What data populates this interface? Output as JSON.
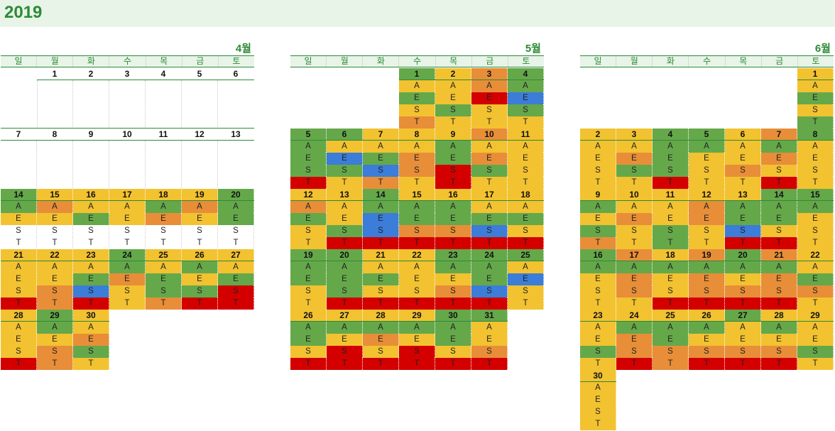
{
  "title": "2019",
  "weekdays": [
    "일",
    "월",
    "화",
    "수",
    "목",
    "금",
    "토"
  ],
  "shift_labels": [
    "A",
    "E",
    "S",
    "T"
  ],
  "colors": {
    "G": "#65a84a",
    "Y": "#f2c230",
    "O": "#e88e38",
    "R": "#d40000",
    "B": "#3b7dd8",
    "W": "#ffffff"
  },
  "months": [
    {
      "label": "4월",
      "weeks": [
        {
          "days": [
            null,
            1,
            2,
            3,
            4,
            5,
            6
          ],
          "dayColors": "WWWWWWW",
          "rows": null
        },
        {
          "days": [
            7,
            8,
            9,
            10,
            11,
            12,
            13
          ],
          "dayColors": "WWWWWWW",
          "rows": null
        },
        {
          "days": [
            14,
            15,
            16,
            17,
            18,
            19,
            20
          ],
          "dayColors": "GYYYYYG",
          "rows": [
            "GOYYGOG",
            "YYGYOYG",
            "WWWWWWW",
            "WWWWWWW"
          ]
        },
        {
          "days": [
            21,
            22,
            23,
            24,
            25,
            26,
            27
          ],
          "dayColors": "YYYGYYY",
          "rows": [
            "YYYGYGY",
            "YYGOGYG",
            "YOBYGGR",
            "RORYORR"
          ]
        },
        {
          "days": [
            28,
            29,
            30,
            null,
            null,
            null,
            null
          ],
          "dayColors": "YGY",
          "rows": [
            "YGY",
            "YYO",
            "YOG",
            "ROY"
          ]
        }
      ]
    },
    {
      "label": "5월",
      "weeks": [
        {
          "days": [
            null,
            null,
            null,
            1,
            2,
            3,
            4
          ],
          "dayColors": "WWWGYOG",
          "rows": [
            "WWWYYOG",
            "WWWGYRB",
            "WWWYGYG",
            "WWWOYYY"
          ]
        },
        {
          "days": [
            5,
            6,
            7,
            8,
            9,
            10,
            11
          ],
          "dayColors": "GGYYYOY",
          "rows": [
            "GYYYGYY",
            "GBGOGOY",
            "GGBORGY",
            "RYOYRYY"
          ]
        },
        {
          "days": [
            12,
            13,
            14,
            15,
            16,
            17,
            18
          ],
          "dayColors": "YYGYYYY",
          "rows": [
            "OYGGGYY",
            "GYBGGGG",
            "YGBOOBY",
            "YRRRRRR"
          ]
        },
        {
          "days": [
            19,
            20,
            21,
            22,
            23,
            24,
            25
          ],
          "dayColors": "GGYYGGG",
          "rows": [
            "GGYYGGY",
            "GGGYYGB",
            "YGYYOBY",
            "YRRRRRY"
          ]
        },
        {
          "days": [
            26,
            27,
            28,
            29,
            30,
            31,
            null
          ],
          "dayColors": "YYYYGG",
          "rows": [
            "GGGGGY",
            "GYOYGY",
            "YRYRYO",
            "RRRRRR"
          ]
        }
      ]
    },
    {
      "label": "6월",
      "weeks": [
        {
          "days": [
            null,
            null,
            null,
            null,
            null,
            null,
            1
          ],
          "dayColors": "WWWWWWY",
          "rows": [
            "WWWWWWY",
            "WWWWWWG",
            "WWWWWWY",
            "WWWWWWG"
          ]
        },
        {
          "days": [
            2,
            3,
            4,
            5,
            6,
            7,
            8
          ],
          "dayColors": "YYGGYOG",
          "rows": [
            "YYGGYGY",
            "YOGYYOY",
            "YGGYOYY",
            "YYRYYRY"
          ]
        },
        {
          "days": [
            9,
            10,
            11,
            12,
            13,
            14,
            15
          ],
          "dayColors": "YYYYYGG",
          "rows": [
            "GYYOGGG",
            "YOYOGGY",
            "GYGYBYY",
            "OYGYRRY"
          ]
        },
        {
          "days": [
            16,
            17,
            18,
            19,
            20,
            21,
            22
          ],
          "dayColors": "GOYOGOY",
          "rows": [
            "GGGGGGY",
            "YOYOYOG",
            "YOYOOOO",
            "YYRRRRY"
          ]
        },
        {
          "days": [
            23,
            24,
            25,
            26,
            27,
            28,
            29
          ],
          "dayColors": "YYYYGYY",
          "rows": [
            "YGGGYGY",
            "YOGYYYY",
            "GOOOOOG",
            "YRORRRY"
          ]
        },
        {
          "days": [
            30,
            null,
            null,
            null,
            null,
            null,
            null
          ],
          "dayColors": "Y",
          "rows": [
            "Y",
            "Y",
            "Y",
            "Y"
          ]
        }
      ]
    }
  ]
}
